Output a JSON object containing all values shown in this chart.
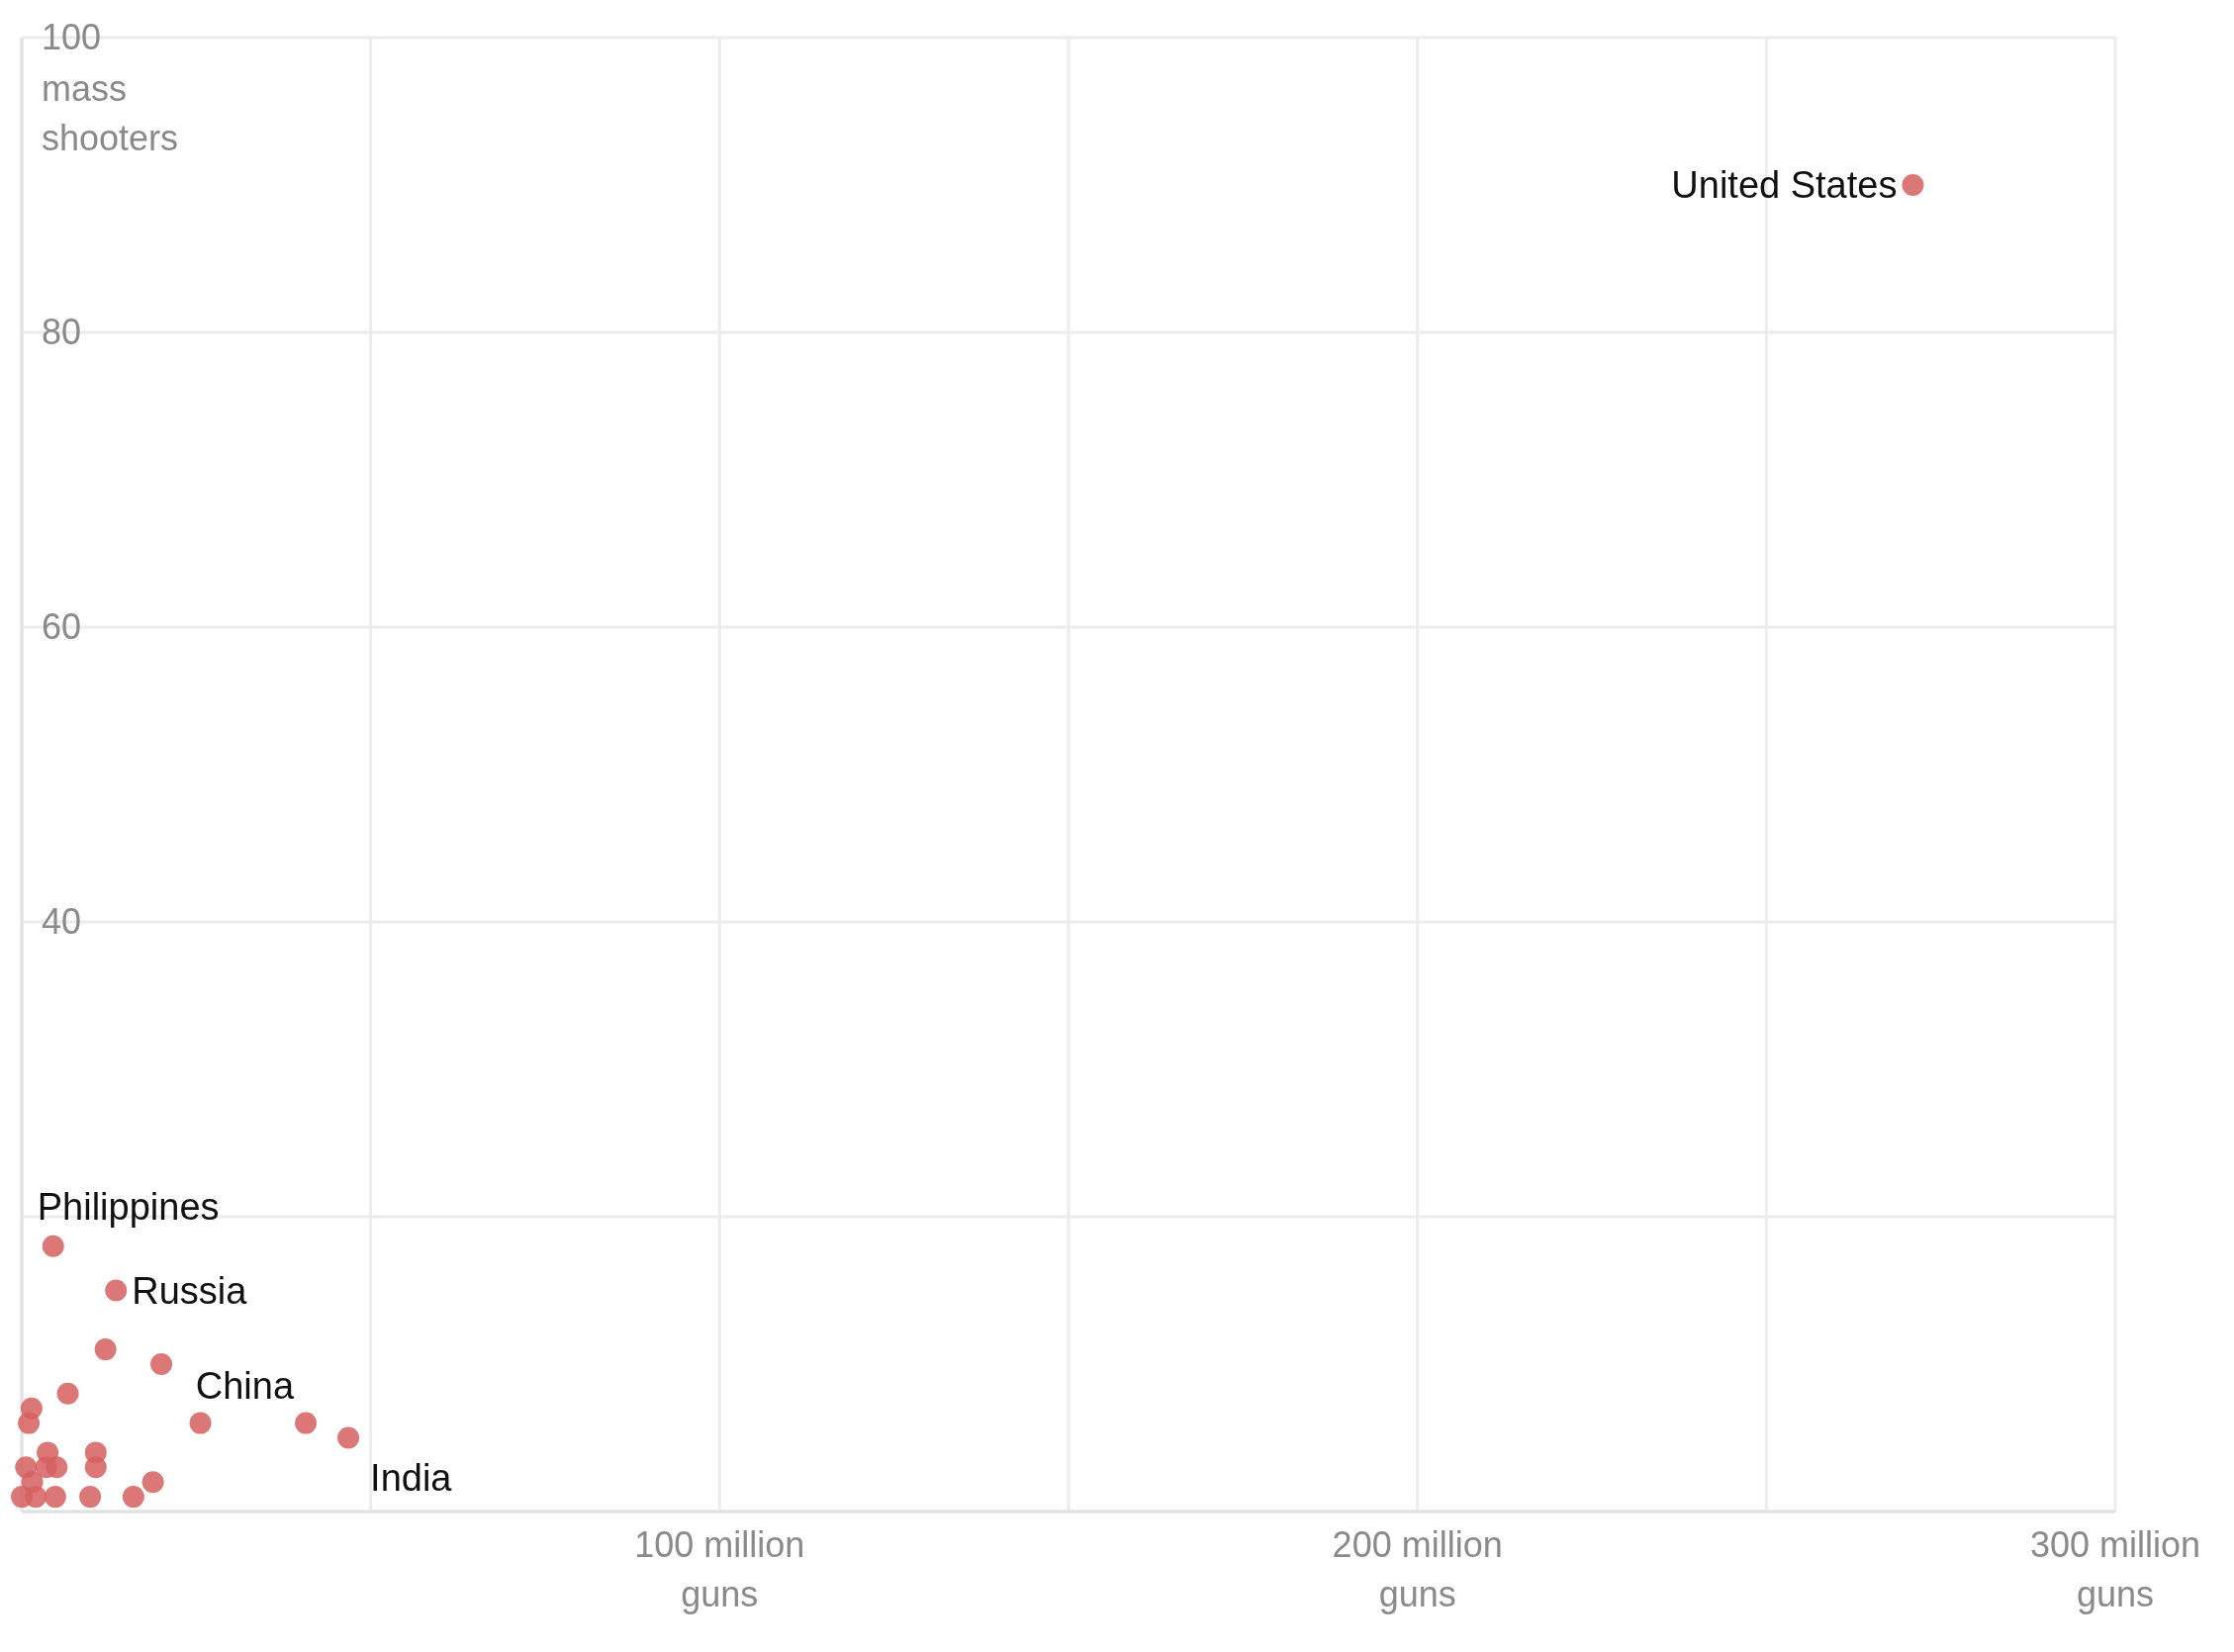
{
  "chart_data": {
    "type": "scatter",
    "color": "#d65f5f",
    "marker": "circle",
    "grid": true,
    "x": [
      271,
      4.5,
      13.5,
      12,
      20,
      6.6,
      1.4,
      1,
      25.6,
      40.7,
      46.8,
      3.7,
      10.6,
      10.6,
      5,
      0.6,
      18.8,
      9.8,
      16,
      0,
      2,
      4.8,
      1.5,
      3.5
    ],
    "values": [
      90,
      18,
      15,
      11,
      10,
      8,
      7,
      6,
      6,
      6,
      5,
      4,
      4,
      3,
      3,
      3,
      2,
      1,
      1,
      1,
      1,
      1,
      2,
      3
    ],
    "xlim": [
      0,
      300
    ],
    "ylim": [
      0,
      100
    ],
    "xticks": [
      {
        "value": 0,
        "label": null
      },
      {
        "value": 50,
        "label": null
      },
      {
        "value": 100,
        "label": "100 million\nguns"
      },
      {
        "value": 150,
        "label": null
      },
      {
        "value": 200,
        "label": "200 million\nguns"
      },
      {
        "value": 250,
        "label": null
      },
      {
        "value": 300,
        "label": "300 million\nguns"
      }
    ],
    "yticks": [
      {
        "value": 0,
        "label": null
      },
      {
        "value": 20,
        "label": null
      },
      {
        "value": 40,
        "label": "40"
      },
      {
        "value": 60,
        "label": "60"
      },
      {
        "value": 80,
        "label": "80"
      },
      100
    ],
    "ylabel": "mass\nshooters",
    "annotations": [
      {
        "text": "United States",
        "x": 271,
        "y": 90
      },
      {
        "text": "Philippines",
        "x": 4.5,
        "y": 18
      },
      {
        "text": "Russia",
        "x": 13.5,
        "y": 15
      },
      {
        "text": "China",
        "x": 40.7,
        "y": 6
      },
      {
        "text": "India",
        "x": 46.8,
        "y": 5
      }
    ]
  }
}
